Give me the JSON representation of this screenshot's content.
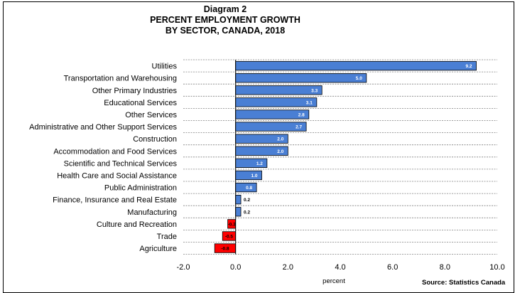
{
  "chart_data": {
    "type": "bar",
    "orientation": "horizontal",
    "title_lines": [
      "Diagram 2",
      "PERCENT EMPLOYMENT GROWTH",
      "BY SECTOR, CANADA, 2018"
    ],
    "xlabel": "percent",
    "source": "Source: Statistics Canada",
    "xlim": [
      -2.0,
      10.0
    ],
    "xticks": [
      "-2.0",
      "0.0",
      "2.0",
      "4.0",
      "6.0",
      "8.0",
      "10.0"
    ],
    "grid": "horizontal dashed",
    "categories": [
      "Utilities",
      "Transportation and Warehousing",
      "Other Primary Industries",
      "Educational Services",
      "Other Services",
      "Administrative and Other Support Services",
      "Construction",
      "Accommodation and Food Services",
      "Scientific and Technical Services",
      "Health Care and Social Assistance",
      "Public Administration",
      "Finance, Insurance and Real Estate",
      "Manufacturing",
      "Culture and Recreation",
      "Trade",
      "Agriculture"
    ],
    "values": [
      9.2,
      5.0,
      3.3,
      3.1,
      2.8,
      2.7,
      2.0,
      2.0,
      1.2,
      1.0,
      0.8,
      0.2,
      0.2,
      -0.3,
      -0.5,
      -0.8
    ],
    "value_labels": [
      "9.2",
      "5.0",
      "3.3",
      "3.1",
      "2.8",
      "2.7",
      "2.0",
      "2.0",
      "1.2",
      "1.0",
      "0.8",
      "0.2",
      "0.2",
      "-0.3",
      "-0.5",
      "-0.8"
    ],
    "colors": {
      "positive": "#4a7fd4",
      "negative": "#ff0000",
      "bar_edge": "#000000",
      "grid": "#808080"
    }
  }
}
